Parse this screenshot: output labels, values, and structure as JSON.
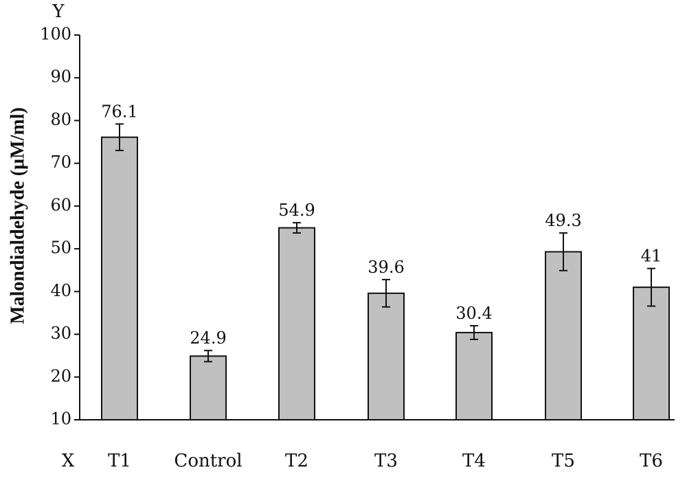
{
  "chart_data": {
    "type": "bar",
    "categories": [
      "T1",
      "Control",
      "T2",
      "T3",
      "T4",
      "T5",
      "T6"
    ],
    "values": [
      76.1,
      24.9,
      54.9,
      39.6,
      30.4,
      49.3,
      41
    ],
    "error_bars": [
      3.1,
      1.3,
      1.2,
      3.2,
      1.6,
      4.4,
      4.4
    ],
    "data_labels": [
      "76.1",
      "24.9",
      "54.9",
      "39.6",
      "30.4",
      "49.3",
      "41"
    ],
    "ylim": [
      10,
      100
    ],
    "yticks": [
      10,
      20,
      30,
      40,
      50,
      60,
      70,
      80,
      90,
      100
    ],
    "ylabel": "Malondialdehyde (µM/ml)",
    "xlabel": "",
    "y_axis_letter": "Y",
    "x_axis_letter": "X",
    "grid": false,
    "bar_color": "#c0c0c0",
    "edge_color": "#111111"
  }
}
